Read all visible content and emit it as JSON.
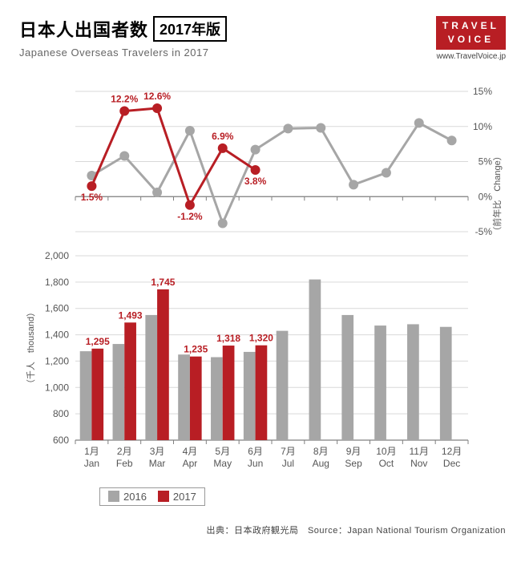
{
  "header": {
    "title_jp": "日本人出国者数",
    "year_badge": "2017年版",
    "subtitle": "Japanese Overseas Travelers in 2017",
    "logo_line1": "TRAVEL",
    "logo_line2": "VOICE",
    "logo_url": "www.TravelVoice.jp"
  },
  "colors": {
    "series_2016": "#a6a6a6",
    "series_2017": "#b81e24",
    "grid": "#d9d9d9",
    "axis": "#808080",
    "bg": "#ffffff",
    "text": "#555555"
  },
  "months": [
    {
      "jp": "1月",
      "en": "Jan"
    },
    {
      "jp": "2月",
      "en": "Feb"
    },
    {
      "jp": "3月",
      "en": "Mar"
    },
    {
      "jp": "4月",
      "en": "Apr"
    },
    {
      "jp": "5月",
      "en": "May"
    },
    {
      "jp": "6月",
      "en": "Jun"
    },
    {
      "jp": "7月",
      "en": "Jul"
    },
    {
      "jp": "8月",
      "en": "Aug"
    },
    {
      "jp": "9月",
      "en": "Sep"
    },
    {
      "jp": "10月",
      "en": "Oct"
    },
    {
      "jp": "11月",
      "en": "Nov"
    },
    {
      "jp": "12月",
      "en": "Dec"
    }
  ],
  "line_chart": {
    "type": "line",
    "ylim": [
      -5,
      15
    ],
    "yticks": [
      -5,
      0,
      5,
      10,
      15
    ],
    "ytick_labels": [
      "-5%",
      "0%",
      "5%",
      "10%",
      "15%"
    ],
    "axis_label_jp": "（前年比",
    "axis_label_en": "Change）",
    "series_2016": {
      "color_key": "series_2016",
      "values": [
        3.0,
        5.8,
        0.6,
        9.4,
        -3.8,
        6.7,
        9.7,
        9.8,
        1.7,
        3.4,
        10.5,
        8.0
      ],
      "marker_radius": 6,
      "line_width": 3
    },
    "series_2017": {
      "color_key": "series_2017",
      "values": [
        1.5,
        12.2,
        12.6,
        -1.2,
        6.9,
        3.8
      ],
      "labels": [
        "1.5%",
        "12.2%",
        "12.6%",
        "-1.2%",
        "6.9%",
        "3.8%"
      ],
      "label_positions": [
        "below",
        "above",
        "above",
        "below",
        "above",
        "below"
      ],
      "marker_radius": 6,
      "line_width": 3
    }
  },
  "bar_chart": {
    "type": "bar",
    "ylim": [
      600,
      2000
    ],
    "yticks": [
      600,
      800,
      1000,
      1200,
      1400,
      1600,
      1800,
      2000
    ],
    "axis_label_jp": "（千人",
    "axis_label_en": "thousand）",
    "bar_group_width": 0.72,
    "series_2016": {
      "color_key": "series_2016",
      "values": [
        1275,
        1330,
        1550,
        1250,
        1230,
        1270,
        1430,
        1820,
        1550,
        1470,
        1480,
        1460
      ]
    },
    "series_2017": {
      "color_key": "series_2017",
      "values": [
        1295,
        1493,
        1745,
        1235,
        1318,
        1320
      ],
      "labels": [
        "1,295",
        "1,493",
        "1,745",
        "1,235",
        "1,318",
        "1,320"
      ]
    }
  },
  "legend": {
    "l2016": "2016",
    "l2017": "2017"
  },
  "source": "出典：日本政府観光局　Source：Japan National Tourism Organization"
}
